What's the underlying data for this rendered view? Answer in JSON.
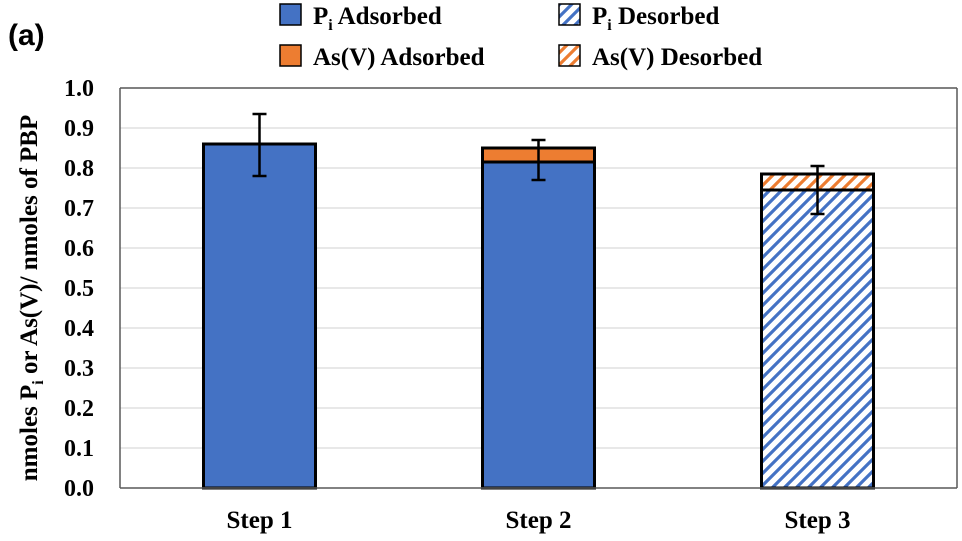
{
  "panel_label": "(a)",
  "colors": {
    "pi": "#4472c4",
    "asv": "#ed7d31",
    "grid": "#d9d9d9",
    "axis": "#595959"
  },
  "chart_data": {
    "type": "bar",
    "stacked": true,
    "title": "",
    "xlabel": "",
    "ylabel": "nmoles Pi or As(V)/ nmoles of PBP",
    "ylabel_parts": {
      "pre": "nmoles P",
      "sub": "i",
      "post": " or As(V)/ nmoles of PBP"
    },
    "ylim": [
      0,
      1.0
    ],
    "yticks": [
      "0.0",
      "0.1",
      "0.2",
      "0.3",
      "0.4",
      "0.5",
      "0.6",
      "0.7",
      "0.8",
      "0.9",
      "1.0"
    ],
    "grid": true,
    "legend_position": "top",
    "categories": [
      "Step 1",
      "Step 2",
      "Step 3"
    ],
    "series": [
      {
        "name": "Pi Adsorbed",
        "name_parts": {
          "pre": "P",
          "sub": "i",
          "post": " Adsorbed"
        },
        "color": "#4472c4",
        "pattern": "solid",
        "values": [
          0.86,
          0.815,
          0
        ]
      },
      {
        "name": "Pi Desorbed",
        "name_parts": {
          "pre": "P",
          "sub": "i",
          "post": " Desorbed"
        },
        "color": "#4472c4",
        "pattern": "hatched",
        "values": [
          0,
          0,
          0.745
        ]
      },
      {
        "name": "As(V) Adsorbed",
        "name_parts": {
          "pre": "As(V) Adsorbed",
          "sub": "",
          "post": ""
        },
        "color": "#ed7d31",
        "pattern": "solid",
        "values": [
          0,
          0.035,
          0
        ]
      },
      {
        "name": "As(V) Desorbed",
        "name_parts": {
          "pre": "As(V) Desorbed",
          "sub": "",
          "post": ""
        },
        "color": "#ed7d31",
        "pattern": "hatched",
        "values": [
          0,
          0,
          0.04
        ]
      }
    ],
    "error_bars": [
      {
        "center": 0.86,
        "low": 0.78,
        "high": 0.935
      },
      {
        "center": 0.825,
        "low": 0.77,
        "high": 0.87
      },
      {
        "center": 0.765,
        "low": 0.685,
        "high": 0.805
      }
    ]
  }
}
